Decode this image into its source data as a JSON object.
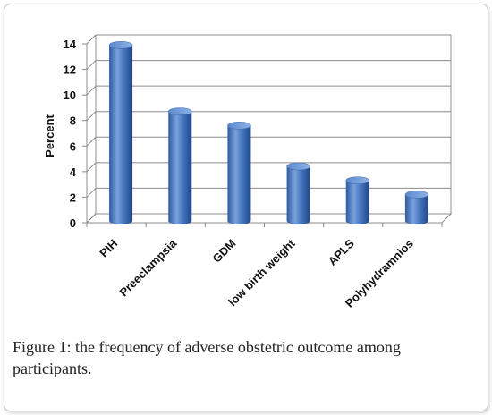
{
  "chart_data": {
    "type": "bar",
    "style": "3d-cylinder",
    "categories": [
      "PIH",
      "Preeclampsia",
      "GDM",
      "low birth weight",
      "APLS",
      "Polyhydramnios"
    ],
    "values": [
      13.7,
      8.5,
      7.4,
      4.2,
      3.1,
      2.0
    ],
    "ylabel": "Percent",
    "xlabel": "",
    "ylim": [
      0,
      14
    ],
    "yticks": [
      0,
      2,
      4,
      6,
      8,
      10,
      12,
      14
    ],
    "grid": true,
    "legend": "none",
    "bar_color": "#4a79c0"
  },
  "caption": {
    "label": "Figure 1:",
    "text": " the frequency of adverse obstetric outcome among participants."
  }
}
